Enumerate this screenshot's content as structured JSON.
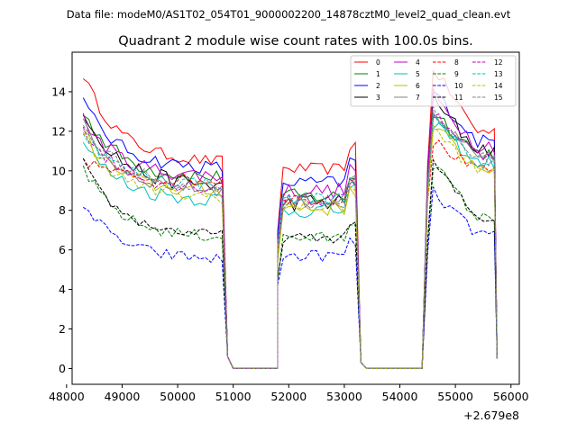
{
  "suptitle": "Data file: modeM0/AS1T02_054T01_9000002200_14878cztM0_level2_quad_clean.evt",
  "chart_data": {
    "type": "line",
    "title": "Quadrant 2 module wise count rates with 100.0s bins.",
    "xlabel": "",
    "ylabel": "",
    "offset_label": "+2.679e8",
    "xlim": [
      48100,
      56150
    ],
    "ylim": [
      -0.8,
      16.0
    ],
    "x_ticks": [
      48000,
      49000,
      50000,
      51000,
      52000,
      53000,
      54000,
      55000,
      56000
    ],
    "y_ticks": [
      0,
      2,
      4,
      6,
      8,
      10,
      12,
      14
    ],
    "legend_position": "top-right",
    "segments": [
      {
        "start": 48300,
        "end": 50800
      },
      {
        "start": 51800,
        "end": 53200
      },
      {
        "start": 54500,
        "end": 55700
      }
    ],
    "gaps": [
      {
        "x": [
          50800,
          50900,
          51000,
          51800
        ],
        "y": [
          2.0,
          0.6,
          0.0,
          0.0
        ]
      },
      {
        "x": [
          53200,
          53300,
          53400,
          54400
        ],
        "y": [
          1.2,
          0.3,
          0.0,
          0.0
        ]
      }
    ],
    "series": [
      {
        "name": "0",
        "color": "#ff0000",
        "dash": "solid",
        "level_a": 10.4,
        "start_a": 14.9,
        "level_b": 10.1,
        "level_c": 12.0,
        "peak_c": 15.2,
        "end": 0.5,
        "amp": 0.3
      },
      {
        "name": "1",
        "color": "#008000",
        "dash": "solid",
        "level_a": 9.6,
        "start_a": 13.1,
        "level_b": 8.7,
        "level_c": 10.9,
        "peak_c": 13.0,
        "end": 0.5,
        "amp": 0.4
      },
      {
        "name": "2",
        "color": "#0000ff",
        "dash": "solid",
        "level_a": 10.1,
        "start_a": 13.5,
        "level_b": 9.4,
        "level_c": 11.5,
        "peak_c": 14.0,
        "end": 0.5,
        "amp": 0.35
      },
      {
        "name": "3",
        "color": "#000000",
        "dash": "solid",
        "level_a": 9.2,
        "start_a": 13.2,
        "level_b": 8.4,
        "level_c": 11.1,
        "peak_c": 13.5,
        "end": 0.5,
        "amp": 0.45
      },
      {
        "name": "4",
        "color": "#bf00bf",
        "dash": "solid",
        "level_a": 9.7,
        "start_a": 12.6,
        "level_b": 9.0,
        "level_c": 11.3,
        "peak_c": 13.8,
        "end": 0.5,
        "amp": 0.4
      },
      {
        "name": "5",
        "color": "#00bfbf",
        "dash": "solid",
        "level_a": 8.5,
        "start_a": 11.5,
        "level_b": 8.0,
        "level_c": 10.4,
        "peak_c": 12.5,
        "end": 0.5,
        "amp": 0.4
      },
      {
        "name": "6",
        "color": "#bfbf00",
        "dash": "solid",
        "level_a": 8.9,
        "start_a": 11.9,
        "level_b": 8.1,
        "level_c": 10.2,
        "peak_c": 12.2,
        "end": 0.5,
        "amp": 0.4
      },
      {
        "name": "7",
        "color": "#808080",
        "dash": "solid",
        "level_a": 9.0,
        "start_a": 12.3,
        "level_b": 8.5,
        "level_c": 10.6,
        "peak_c": 12.8,
        "end": 0.5,
        "amp": 0.35
      },
      {
        "name": "8",
        "color": "#ff0000",
        "dash": "dashed",
        "level_a": 9.5,
        "start_a": 10.6,
        "level_b": 8.6,
        "level_c": 10.0,
        "peak_c": 11.5,
        "end": 0.5,
        "amp": 0.3
      },
      {
        "name": "9",
        "color": "#008000",
        "dash": "dashed",
        "level_a": 6.6,
        "start_a": 10.2,
        "level_b": 6.6,
        "level_c": 7.6,
        "peak_c": 10.4,
        "end": 0.5,
        "amp": 0.3
      },
      {
        "name": "10",
        "color": "#0000ff",
        "dash": "dashed",
        "level_a": 5.5,
        "start_a": 8.4,
        "level_b": 5.7,
        "level_c": 6.8,
        "peak_c": 8.9,
        "end": 0.5,
        "amp": 0.3
      },
      {
        "name": "11",
        "color": "#000000",
        "dash": "dashed",
        "level_a": 6.7,
        "start_a": 10.4,
        "level_b": 6.6,
        "level_c": 7.6,
        "peak_c": 10.4,
        "end": 0.5,
        "amp": 0.25
      },
      {
        "name": "12",
        "color": "#bf00bf",
        "dash": "dashed",
        "level_a": 9.1,
        "start_a": 12.2,
        "level_b": 8.5,
        "level_c": 10.8,
        "peak_c": 13.0,
        "end": 0.5,
        "amp": 0.35
      },
      {
        "name": "13",
        "color": "#00bfbf",
        "dash": "dashed",
        "level_a": 9.3,
        "start_a": 12.0,
        "level_b": 8.6,
        "level_c": 10.4,
        "peak_c": 12.6,
        "end": 0.5,
        "amp": 0.35
      },
      {
        "name": "14",
        "color": "#bfbf00",
        "dash": "dashed",
        "level_a": 8.6,
        "start_a": 11.8,
        "level_b": 8.2,
        "level_c": 10.0,
        "peak_c": 12.1,
        "end": 0.5,
        "amp": 0.35
      },
      {
        "name": "15",
        "color": "#808080",
        "dash": "dashed",
        "level_a": 9.2,
        "start_a": 12.4,
        "level_b": 8.4,
        "level_c": 10.6,
        "peak_c": 12.9,
        "end": 0.5,
        "amp": 0.35
      }
    ]
  }
}
